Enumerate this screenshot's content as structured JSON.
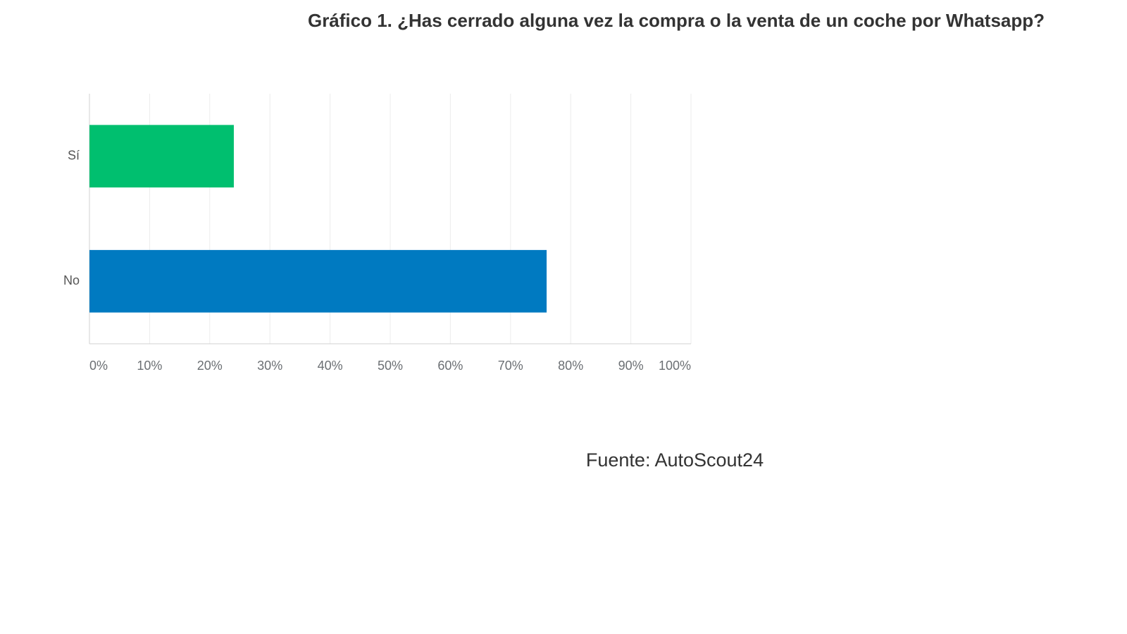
{
  "chart_data": {
    "type": "barh",
    "title": "Gráfico 1. ¿Has cerrado alguna vez la compra o la venta de un coche por Whatsapp?",
    "source": "Fuente: AutoScout24",
    "categories": [
      "Sí",
      "No"
    ],
    "values": [
      24,
      76
    ],
    "colors": [
      "#00bf6f",
      "#007ac1"
    ],
    "xlim": [
      0,
      100
    ],
    "xticks": [
      {
        "value": 0,
        "label": "0%"
      },
      {
        "value": 10,
        "label": "10%"
      },
      {
        "value": 20,
        "label": "20%"
      },
      {
        "value": 30,
        "label": "30%"
      },
      {
        "value": 40,
        "label": "40%"
      },
      {
        "value": 50,
        "label": "50%"
      },
      {
        "value": 60,
        "label": "60%"
      },
      {
        "value": 70,
        "label": "70%"
      },
      {
        "value": 80,
        "label": "80%"
      },
      {
        "value": 90,
        "label": "90%"
      },
      {
        "value": 100,
        "label": "100%"
      }
    ],
    "grid": true
  }
}
